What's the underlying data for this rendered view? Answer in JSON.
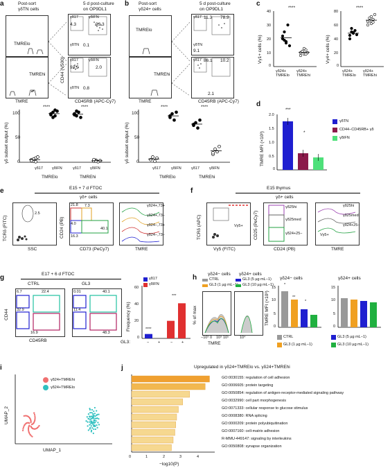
{
  "a": {
    "label": "a",
    "left_title": "Post-sort",
    "left_title2": "γδTN cells",
    "right_title": "5 d post-culture",
    "right_title2": "on OP9DL1",
    "gate_lo": "TMRElo",
    "gate_hi": "TMREhi",
    "xaxis_left": "TMRE",
    "xaxis_right": "CD45RB (APC-Cy7)",
    "yaxis_right": "CD44 (V500)",
    "top_nums": [
      "4.3",
      "93.3"
    ],
    "bot_nums": [
      "93.5",
      "2.0"
    ],
    "tn_top": "0.1",
    "tn_bot": "0.8",
    "q_labels": [
      "γδ17",
      "γδIFN",
      "γδ17",
      "γδIFN",
      "γδTN",
      "γδTN"
    ],
    "scatter_ylabel": "γδ subset output (%)",
    "scatter_yticks": [
      "0",
      "50",
      "100"
    ],
    "groups": [
      "γδ17",
      "γδIFN",
      "γδ17",
      "γδIFN"
    ],
    "group_labels": [
      "TMRElo",
      "TMREhi"
    ],
    "sig": [
      "****",
      "****"
    ]
  },
  "b": {
    "label": "b",
    "left_title": "Post-sort",
    "left_title2": "γδ24+ cells",
    "right_title": "5 d post-culture",
    "right_title2": "on OP9DL1",
    "gate_lo": "TMRElo",
    "gate_hi": "TMREhi",
    "xaxis_left": "TMRE",
    "xaxis_right": "CD45RB (APC-Cy7)",
    "top_nums": [
      "11.3",
      "78.9"
    ],
    "bot_nums": [
      "86.1",
      "10.2"
    ],
    "tn_top": "9.1",
    "tn_bot": "2.1",
    "scatter_ylabel": "γδ subset output (%)",
    "scatter_yticks": [
      "0",
      "50",
      "100"
    ],
    "groups": [
      "γδ17",
      "γδIFN",
      "γδ17",
      "γδIFN"
    ],
    "group_labels": [
      "TMRElo",
      "TMREhi"
    ],
    "sig": [
      "****",
      "****"
    ]
  },
  "c": {
    "label": "c",
    "left_ylabel": "Vγ1+ cells (%)",
    "left_yticks": [
      "0",
      "10",
      "20",
      "30",
      "40"
    ],
    "right_ylabel": "Vγ4+ cells (%)",
    "right_yticks": [
      "0",
      "20",
      "40",
      "60",
      "80"
    ],
    "xcats": [
      "γδ24+ TMRElo",
      "γδ24+ TMREhi"
    ],
    "sig": [
      "****",
      "****"
    ]
  },
  "d": {
    "label": "d",
    "ylabel": "TMRE MFI (×10³)",
    "yticks": [
      "0",
      "0.5",
      "1.0",
      "1.5",
      "2.0"
    ],
    "legend": [
      "γδTN",
      "CD44−CD45RB+ γδ",
      "γδIFN"
    ],
    "colors": [
      "#1f1fd0",
      "#8b1a4a",
      "#4ee07a"
    ],
    "sig": [
      "***",
      "*"
    ]
  },
  "e": {
    "label": "e",
    "title": "E15 + 7 d FTOC",
    "subtitle": "γδ+ cells",
    "y1": "TCRδ (FITC)",
    "x1": "SSC",
    "gate1": "2.5",
    "y2": "CD24 (PB)",
    "x2": "CD73 (PeCy7)",
    "quads": [
      "21.8",
      "7.3",
      "4.0",
      "16.3",
      "40.1"
    ],
    "hist_x": "TMRE",
    "hist_legend": [
      "γδ24+,73+",
      "γδ24+,73−",
      "γδ24−,73+",
      "γδ24−,73−"
    ]
  },
  "f": {
    "label": "f",
    "title": "E15 thymus",
    "subtitle": "γδ+ cells",
    "y1": "TCRδ (APC)",
    "x1": "Vγ5 (FITC)",
    "gate1": "Vγ5+",
    "y2": "CD25 (PeCy7)",
    "x2": "CD24 (PB)",
    "gates": [
      "γδ25hi",
      "γδ25med",
      "γδ24+25−"
    ],
    "hist_x": "TMRE",
    "hist_legend": [
      "γδ25hi",
      "γδ25med",
      "γδ24+25−",
      "Vγ5+"
    ]
  },
  "g": {
    "label": "g",
    "title": "E17 + 6 d FTOC",
    "cols": [
      "CTRL",
      "GL3"
    ],
    "yaxis": "CD44",
    "xaxis": "CD45RB",
    "ctrl_nums": [
      "6.7",
      "22.4",
      "32.9",
      "16.9"
    ],
    "gl3_nums": [
      "0.01",
      "40.1",
      "11.4",
      "48.3"
    ],
    "bar_ylabel": "Frequency (%)",
    "bar_yticks": [
      "0",
      "20",
      "40",
      "60"
    ],
    "legend": [
      "γδ17",
      "γδIFN"
    ],
    "colors": [
      "#1f1fd0",
      "#e03030"
    ],
    "xlab": "GL3:",
    "xvals": [
      "−",
      "+",
      "−",
      "+"
    ],
    "sig": [
      "****",
      "***"
    ]
  },
  "h": {
    "label": "h",
    "t1": "γδ24− cells",
    "t2": "γδ24+ cells",
    "legend_left": [
      "CTRL",
      "GL3 (1 µg mL−1)"
    ],
    "legend_right": [
      "GL3 (5 µg mL−1)",
      "GL3 (10 µg mL−1)"
    ],
    "hist_ylabel": "% of max",
    "hist_x": "TMRE",
    "hist_xticks": [
      "−10³",
      "0",
      "10³",
      "10⁴",
      "10⁵"
    ],
    "bar_ylabel": "TMRE MFI (×10³)",
    "bar_t1": "γδ24− cells",
    "bar_t2": "γδ24+ cells",
    "bar_yticks": [
      "0",
      "5",
      "10",
      "15"
    ],
    "colors": [
      "#999999",
      "#f0a020",
      "#1f1fd0",
      "#20b040"
    ],
    "sig": [
      "*",
      "**",
      "*"
    ]
  },
  "i": {
    "label": "i",
    "legend": [
      "γδ24+TMREhi",
      "γδ24+TMRElo"
    ],
    "colors": [
      "#f07070",
      "#30c0c0"
    ],
    "x": "UMAP_1",
    "y": "UMAP_2"
  },
  "j": {
    "label": "j",
    "title": "Upregulated in γδ24+TMRElo vs. γδ24+TMREhi",
    "xaxis": "−log10(P)",
    "xticks": [
      "0",
      "1",
      "2",
      "3",
      "4"
    ],
    "terms": [
      "GO:0030155: regulation of cell adhesion",
      "GO:0006605: protein targeting",
      "GO:0050854: regulation of antigen-receptor-mediated signaling pathway",
      "GO:0032990: cell part morphogenesis",
      "GO:0071333: cellular response to glucose stimulus",
      "GO:0008380: RNA splicing",
      "GO:0000209: protein polyubiquitination",
      "GO:0007160: cell-matrix adhesion",
      "R-MMU-449147: signaling by interleukins",
      "GO:0050808: synapse organization"
    ],
    "values": [
      4.5,
      4.25,
      3.35,
      2.95,
      2.7,
      2.6,
      2.55,
      2.5,
      2.4,
      2.3
    ]
  }
}
